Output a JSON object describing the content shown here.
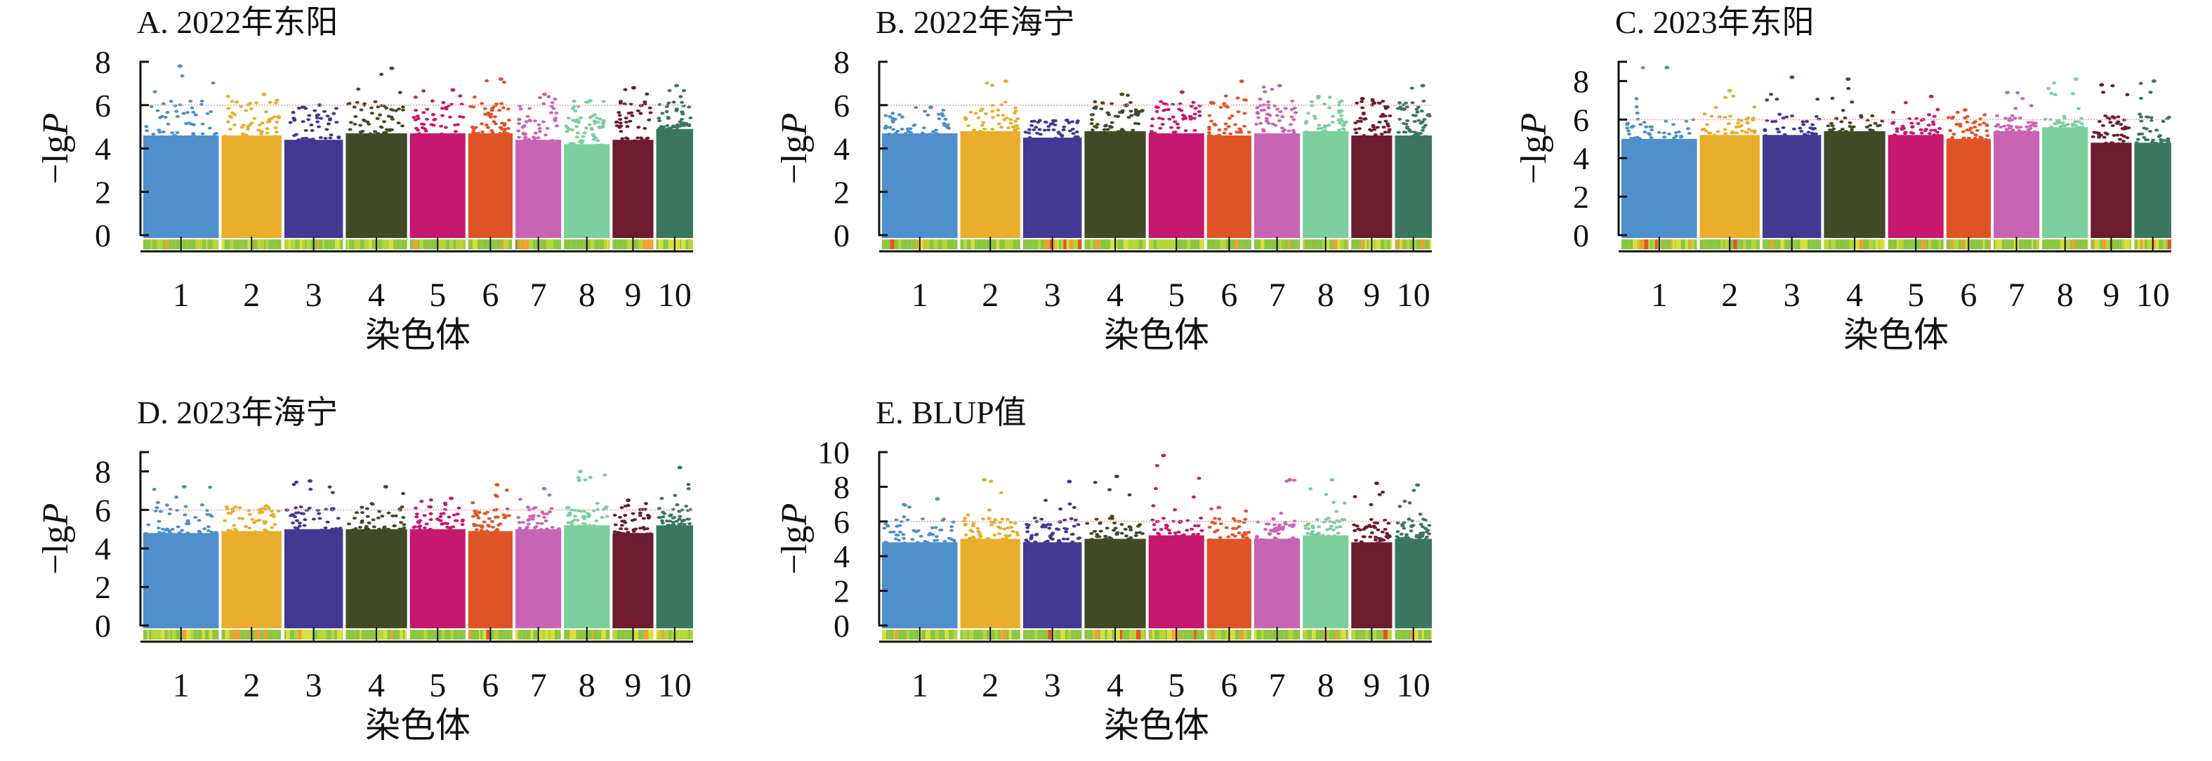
{
  "chart_data": [
    {
      "type": "scatter",
      "subtype": "manhattan",
      "title": "A. 2022年东阳",
      "xlabel": "染色体",
      "ylabel": [
        "−lg",
        "P"
      ],
      "categories": [
        "1",
        "2",
        "3",
        "4",
        "5",
        "6",
        "7",
        "8",
        "9",
        "10"
      ],
      "ylim": [
        0,
        8
      ],
      "yticks": [
        0,
        2,
        4,
        6,
        8
      ],
      "threshold": 6,
      "peak_values": [
        7.8,
        6.5,
        6.0,
        7.7,
        6.7,
        7.2,
        6.5,
        6.2,
        6.8,
        6.9
      ],
      "bulk_top": [
        4.6,
        4.6,
        4.4,
        4.7,
        4.7,
        4.7,
        4.4,
        4.2,
        4.4,
        4.9
      ]
    },
    {
      "type": "scatter",
      "subtype": "manhattan",
      "title": "B. 2022年海宁",
      "xlabel": "染色体",
      "ylabel": [
        "−lg",
        "P"
      ],
      "categories": [
        "1",
        "2",
        "3",
        "4",
        "5",
        "6",
        "7",
        "8",
        "9",
        "10"
      ],
      "ylim": [
        0,
        8
      ],
      "yticks": [
        0,
        2,
        4,
        6,
        8
      ],
      "threshold": 6,
      "peak_values": [
        5.9,
        7.1,
        5.3,
        6.5,
        6.6,
        7.1,
        6.9,
        6.4,
        6.3,
        6.9
      ],
      "bulk_top": [
        4.7,
        4.8,
        4.5,
        4.8,
        4.7,
        4.6,
        4.7,
        4.8,
        4.6,
        4.6
      ]
    },
    {
      "type": "scatter",
      "subtype": "manhattan",
      "title": "C. 2023年东阳",
      "xlabel": "染色体",
      "ylabel": [
        "−lg",
        "P"
      ],
      "categories": [
        "1",
        "2",
        "3",
        "4",
        "5",
        "6",
        "7",
        "8",
        "9",
        "10"
      ],
      "ylim": [
        0,
        9
      ],
      "yticks": [
        0,
        2,
        4,
        6,
        8
      ],
      "threshold": 6,
      "peak_values": [
        8.7,
        7.5,
        8.2,
        8.1,
        7.2,
        6.5,
        7.4,
        8.1,
        7.8,
        8.0
      ],
      "bulk_top": [
        5.0,
        5.2,
        5.2,
        5.4,
        5.2,
        5.0,
        5.4,
        5.6,
        4.8,
        4.8
      ]
    },
    {
      "type": "scatter",
      "subtype": "manhattan",
      "title": "D. 2023年海宁",
      "xlabel": "染色体",
      "ylabel": [
        "−lg",
        "P"
      ],
      "categories": [
        "1",
        "2",
        "3",
        "4",
        "5",
        "6",
        "7",
        "8",
        "9",
        "10"
      ],
      "ylim": [
        0,
        9
      ],
      "yticks": [
        0,
        2,
        4,
        6,
        8
      ],
      "threshold": 6,
      "peak_values": [
        7.2,
        6.2,
        7.5,
        7.2,
        6.6,
        7.3,
        7.1,
        8.0,
        6.5,
        8.2
      ],
      "bulk_top": [
        4.8,
        4.9,
        5.0,
        5.0,
        5.0,
        4.9,
        5.0,
        5.2,
        4.8,
        5.2
      ]
    },
    {
      "type": "scatter",
      "subtype": "manhattan",
      "title": "E. BLUP值",
      "xlabel": "染色体",
      "ylabel": [
        "−lg",
        "P"
      ],
      "categories": [
        "1",
        "2",
        "3",
        "4",
        "5",
        "6",
        "7",
        "8",
        "9",
        "10"
      ],
      "ylim": [
        0,
        10
      ],
      "yticks": [
        0,
        2,
        4,
        6,
        8,
        10
      ],
      "threshold": 6,
      "peak_values": [
        7.3,
        8.4,
        8.3,
        8.6,
        9.8,
        6.8,
        8.4,
        8.4,
        8.2,
        8.1
      ],
      "bulk_top": [
        4.8,
        5.0,
        4.8,
        5.0,
        5.2,
        5.0,
        5.0,
        5.2,
        4.8,
        5.0
      ]
    }
  ],
  "colors": {
    "chromosomes": [
      "#4f8fcb",
      "#e8ae2c",
      "#433993",
      "#414a27",
      "#c5186e",
      "#df5427",
      "#c765b4",
      "#7ccf9d",
      "#6d1b30",
      "#3a7660"
    ],
    "threshold_line": "#f2a3a3",
    "density_strip": [
      "#8cc63f",
      "#b5d636",
      "#d8e03a",
      "#f0a030",
      "#e05a20"
    ]
  }
}
